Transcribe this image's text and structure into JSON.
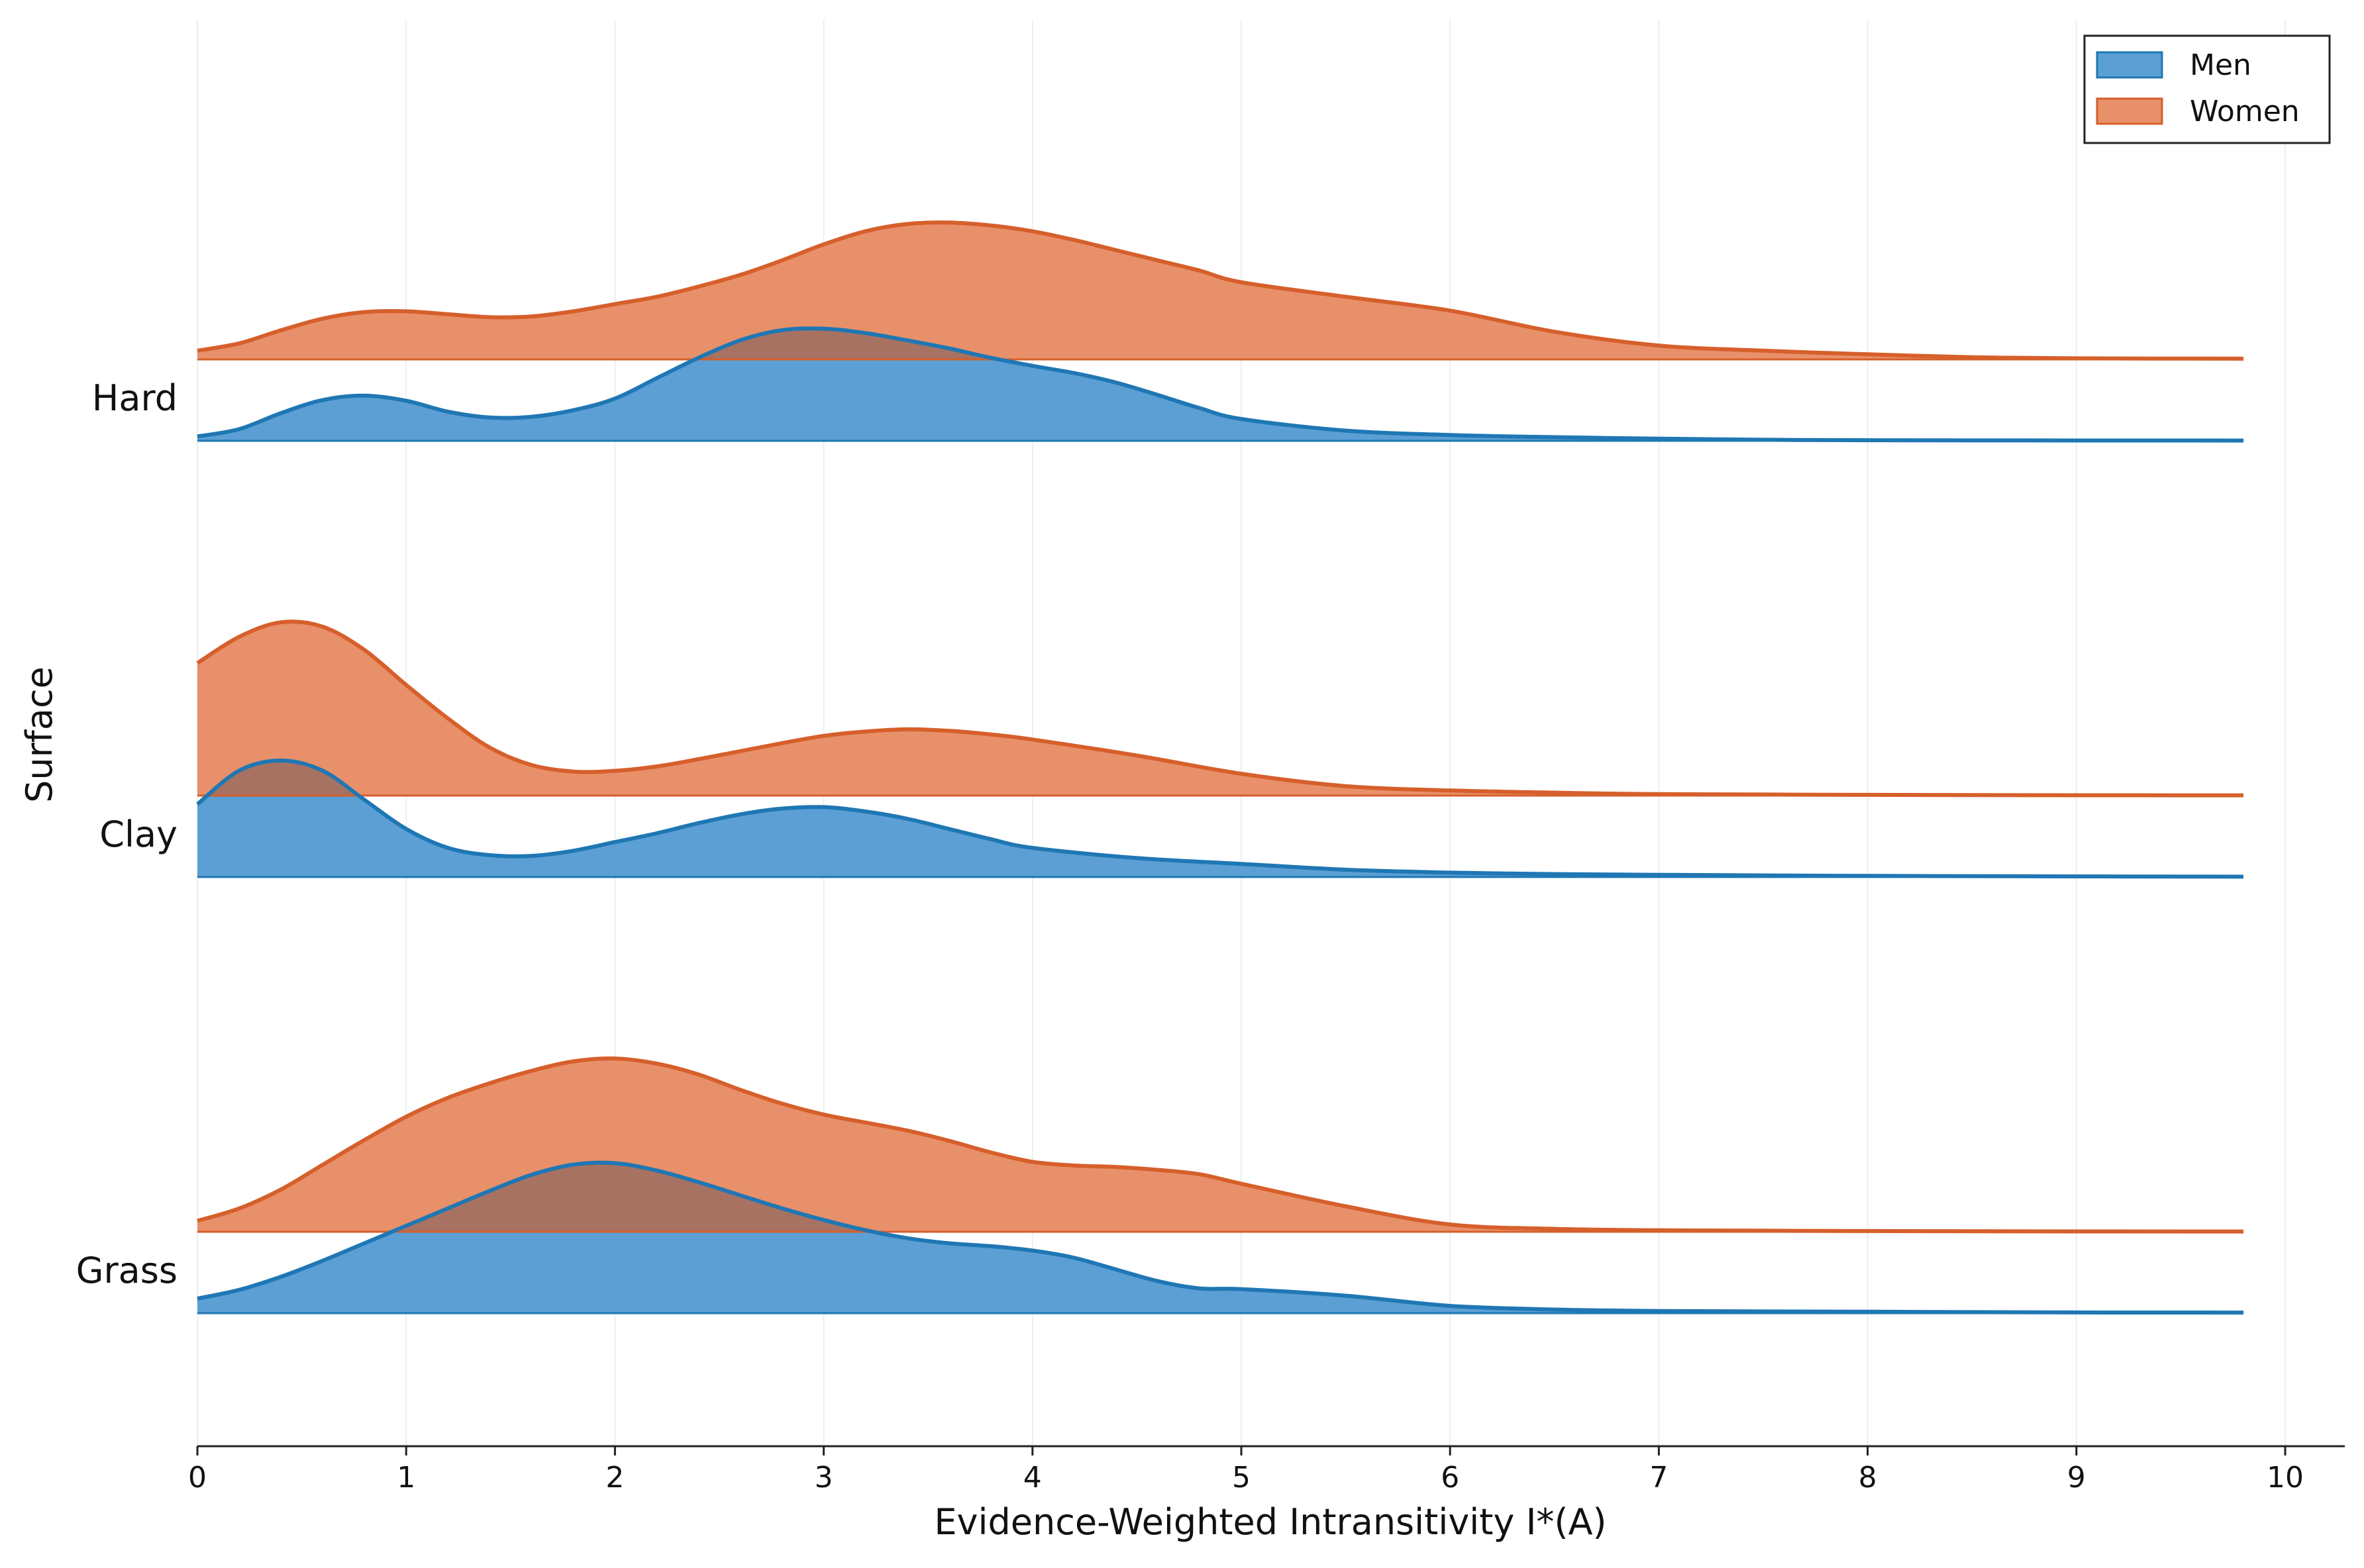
{
  "chart_data": {
    "type": "ridgeline-density",
    "xlabel": "Evidence-Weighted Intransitivity I*(A)",
    "ylabel": "Surface",
    "xlim": [
      0,
      10.3
    ],
    "x_ticks": [
      0,
      1,
      2,
      3,
      4,
      5,
      6,
      7,
      8,
      9,
      10
    ],
    "x_ticklabels": [
      "0",
      "1",
      "2",
      "3",
      "4",
      "5",
      "6",
      "7",
      "8",
      "9",
      "10"
    ],
    "grid": "vertical",
    "legend": {
      "placement": "top-right",
      "entries": [
        {
          "key": "men",
          "label": "Men"
        },
        {
          "key": "women",
          "label": "Women"
        }
      ]
    },
    "colors": {
      "men_fill": "#5b9fd4",
      "men_line": "#1f77b4",
      "women_fill": "#e8906a",
      "women_line": "#d65f2b",
      "overlap": "#a87262",
      "grid": "#eeeeee",
      "axis": "#222222"
    },
    "surfaces": [
      {
        "name": "Hard",
        "series": [
          {
            "key": "men",
            "name": "Men",
            "x": [
              0,
              0.2,
              0.4,
              0.6,
              0.8,
              1.0,
              1.2,
              1.4,
              1.6,
              1.8,
              2.0,
              2.2,
              2.4,
              2.6,
              2.8,
              3.0,
              3.2,
              3.4,
              3.6,
              3.8,
              4.0,
              4.2,
              4.4,
              4.6,
              4.8,
              5.0,
              5.5,
              6.0,
              6.5,
              7.0,
              7.5,
              8.0,
              9.0,
              9.8
            ],
            "density": [
              0.06,
              0.16,
              0.38,
              0.56,
              0.62,
              0.55,
              0.4,
              0.32,
              0.33,
              0.42,
              0.58,
              0.86,
              1.14,
              1.38,
              1.52,
              1.54,
              1.48,
              1.38,
              1.27,
              1.14,
              1.03,
              0.93,
              0.8,
              0.63,
              0.45,
              0.3,
              0.14,
              0.08,
              0.05,
              0.03,
              0.015,
              0.008,
              0.005,
              0.004
            ]
          },
          {
            "key": "women",
            "name": "Women",
            "x": [
              0,
              0.2,
              0.4,
              0.6,
              0.8,
              1.0,
              1.2,
              1.4,
              1.6,
              1.8,
              2.0,
              2.2,
              2.4,
              2.6,
              2.8,
              3.0,
              3.2,
              3.4,
              3.6,
              3.8,
              4.0,
              4.2,
              4.4,
              4.6,
              4.8,
              5.0,
              5.5,
              6.0,
              6.5,
              7.0,
              7.5,
              8.0,
              8.5,
              9.0,
              9.8
            ],
            "density": [
              0.12,
              0.22,
              0.4,
              0.56,
              0.65,
              0.66,
              0.62,
              0.58,
              0.59,
              0.66,
              0.76,
              0.86,
              1.0,
              1.16,
              1.36,
              1.58,
              1.76,
              1.86,
              1.88,
              1.84,
              1.76,
              1.64,
              1.5,
              1.36,
              1.22,
              1.06,
              0.86,
              0.67,
              0.38,
              0.19,
              0.12,
              0.07,
              0.03,
              0.015,
              0.01
            ]
          }
        ]
      },
      {
        "name": "Clay",
        "series": [
          {
            "key": "men",
            "name": "Men",
            "x": [
              0,
              0.2,
              0.4,
              0.6,
              0.8,
              1.0,
              1.2,
              1.4,
              1.6,
              1.8,
              2.0,
              2.2,
              2.4,
              2.6,
              2.8,
              3.0,
              3.2,
              3.4,
              3.6,
              3.8,
              4.0,
              4.5,
              5.0,
              5.5,
              6.0,
              6.5,
              7.0,
              8.0,
              9.0,
              9.8
            ],
            "density": [
              1.0,
              1.46,
              1.6,
              1.46,
              1.06,
              0.66,
              0.4,
              0.3,
              0.29,
              0.36,
              0.48,
              0.6,
              0.74,
              0.86,
              0.94,
              0.96,
              0.9,
              0.8,
              0.66,
              0.52,
              0.4,
              0.26,
              0.18,
              0.1,
              0.06,
              0.04,
              0.03,
              0.015,
              0.008,
              0.005
            ]
          },
          {
            "key": "women",
            "name": "Women",
            "x": [
              0,
              0.2,
              0.4,
              0.6,
              0.8,
              1.0,
              1.2,
              1.4,
              1.6,
              1.8,
              2.0,
              2.2,
              2.4,
              2.6,
              2.8,
              3.0,
              3.2,
              3.4,
              3.6,
              3.8,
              4.0,
              4.5,
              5.0,
              5.5,
              6.0,
              6.5,
              7.0,
              8.0,
              9.0,
              9.8
            ],
            "density": [
              1.82,
              2.18,
              2.38,
              2.32,
              2.0,
              1.52,
              1.06,
              0.66,
              0.42,
              0.33,
              0.34,
              0.4,
              0.5,
              0.61,
              0.72,
              0.82,
              0.88,
              0.91,
              0.89,
              0.84,
              0.77,
              0.55,
              0.3,
              0.13,
              0.07,
              0.04,
              0.02,
              0.01,
              0.005,
              0.004
            ]
          }
        ]
      },
      {
        "name": "Grass",
        "series": [
          {
            "key": "men",
            "name": "Men",
            "x": [
              0,
              0.2,
              0.4,
              0.6,
              0.8,
              1.0,
              1.2,
              1.4,
              1.6,
              1.8,
              2.0,
              2.2,
              2.4,
              2.6,
              2.8,
              3.0,
              3.2,
              3.4,
              3.6,
              3.8,
              4.0,
              4.2,
              4.4,
              4.6,
              4.8,
              5.0,
              5.5,
              6.0,
              6.5,
              7.0,
              8.0,
              9.0,
              9.8
            ],
            "density": [
              0.2,
              0.32,
              0.5,
              0.72,
              0.96,
              1.2,
              1.44,
              1.68,
              1.9,
              2.04,
              2.06,
              1.96,
              1.8,
              1.62,
              1.44,
              1.28,
              1.14,
              1.03,
              0.96,
              0.92,
              0.86,
              0.76,
              0.6,
              0.44,
              0.34,
              0.33,
              0.24,
              0.1,
              0.05,
              0.03,
              0.02,
              0.01,
              0.008
            ]
          },
          {
            "key": "women",
            "name": "Women",
            "x": [
              0,
              0.2,
              0.4,
              0.6,
              0.8,
              1.0,
              1.2,
              1.4,
              1.6,
              1.8,
              2.0,
              2.2,
              2.4,
              2.6,
              2.8,
              3.0,
              3.2,
              3.4,
              3.6,
              3.8,
              4.0,
              4.2,
              4.4,
              4.6,
              4.8,
              5.0,
              5.5,
              6.0,
              6.5,
              7.0,
              8.0,
              9.0,
              9.8
            ],
            "density": [
              0.15,
              0.32,
              0.58,
              0.92,
              1.26,
              1.58,
              1.84,
              2.04,
              2.21,
              2.34,
              2.38,
              2.31,
              2.16,
              1.95,
              1.76,
              1.61,
              1.5,
              1.39,
              1.25,
              1.09,
              0.96,
              0.91,
              0.89,
              0.85,
              0.79,
              0.66,
              0.35,
              0.1,
              0.04,
              0.02,
              0.01,
              0.005,
              0.004
            ]
          }
        ]
      }
    ]
  }
}
